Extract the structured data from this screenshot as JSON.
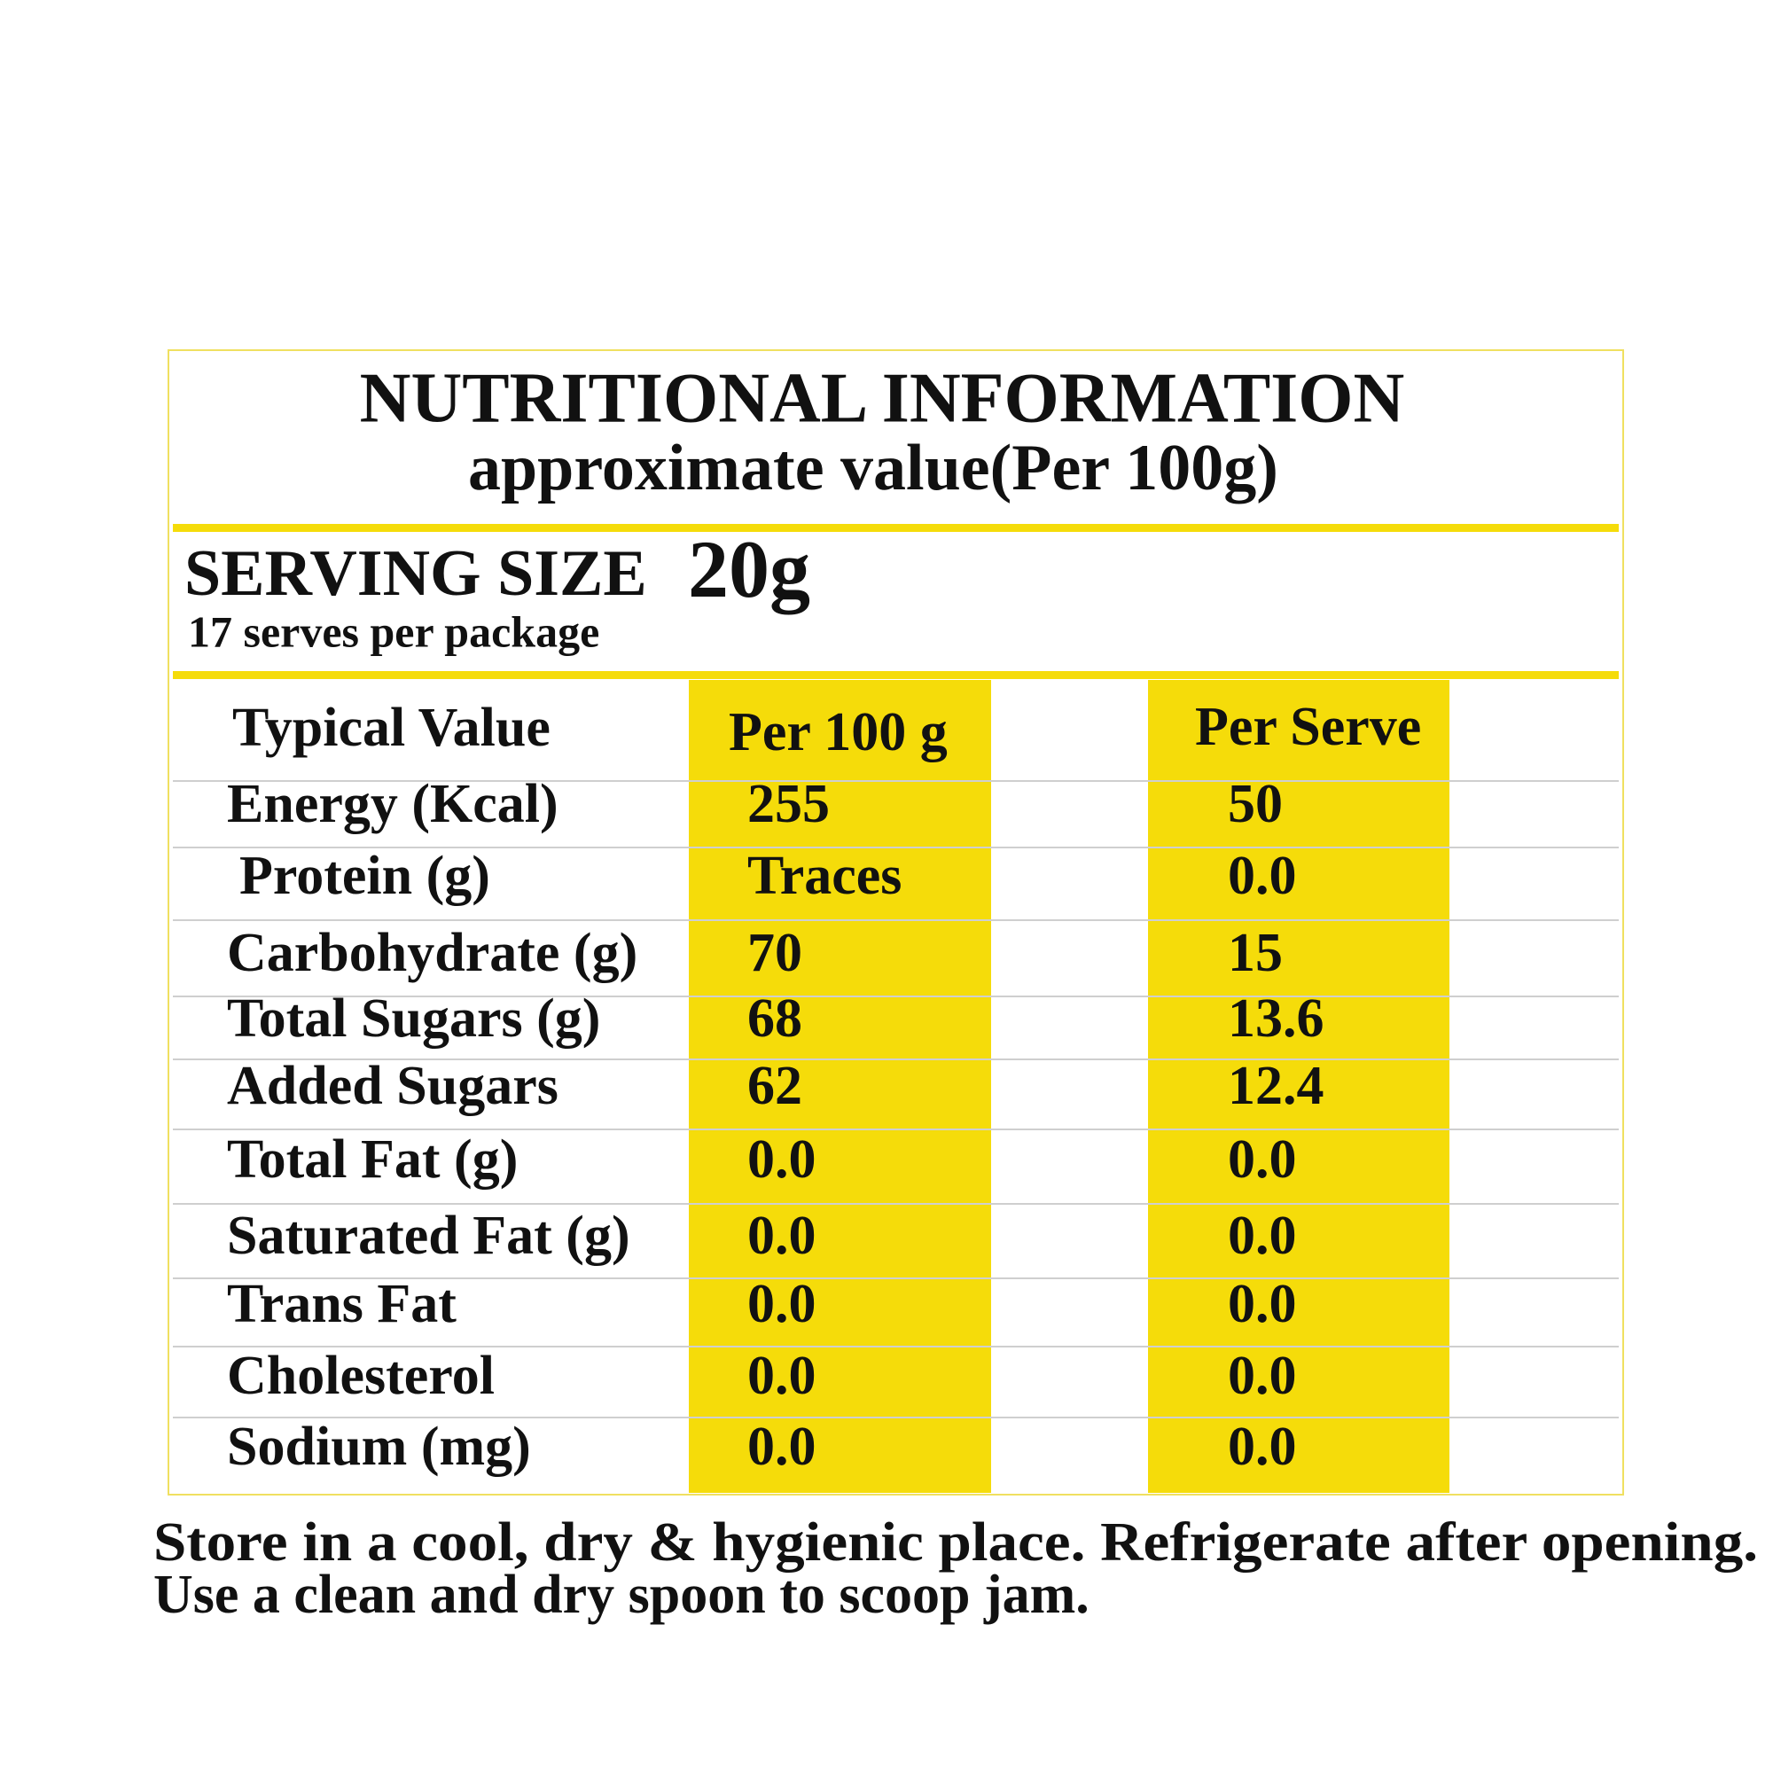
{
  "header": {
    "title": "NUTRITIONAL INFORMATION",
    "subtitle": "approximate value(Per 100g)"
  },
  "serving": {
    "label": "SERVING SIZE",
    "size": "20g",
    "serves": "17 serves per package"
  },
  "table": {
    "columns": [
      "Typical Value",
      "Per 100 g",
      "Per Serve"
    ],
    "rows": [
      [
        "Energy (Kcal)",
        "255",
        "50"
      ],
      [
        "Protein (g)",
        "Traces",
        "0.0"
      ],
      [
        "Carbohydrate (g)",
        "70",
        "15"
      ],
      [
        "Total Sugars (g)",
        "68",
        "13.6"
      ],
      [
        "Added Sugars",
        "62",
        "12.4"
      ],
      [
        "Total Fat (g)",
        "0.0",
        "0.0"
      ],
      [
        "Saturated Fat (g)",
        "0.0",
        "0.0"
      ],
      [
        "Trans Fat",
        "0.0",
        "0.0"
      ],
      [
        "Cholesterol",
        "0.0",
        "0.0"
      ],
      [
        "Sodium (mg)",
        "0.0",
        "0.0"
      ]
    ]
  },
  "footer": {
    "lines": [
      "Store in a cool, dry & hygienic place. Refrigerate after opening.",
      "Use a clean and dry spoon to scoop jam."
    ]
  }
}
